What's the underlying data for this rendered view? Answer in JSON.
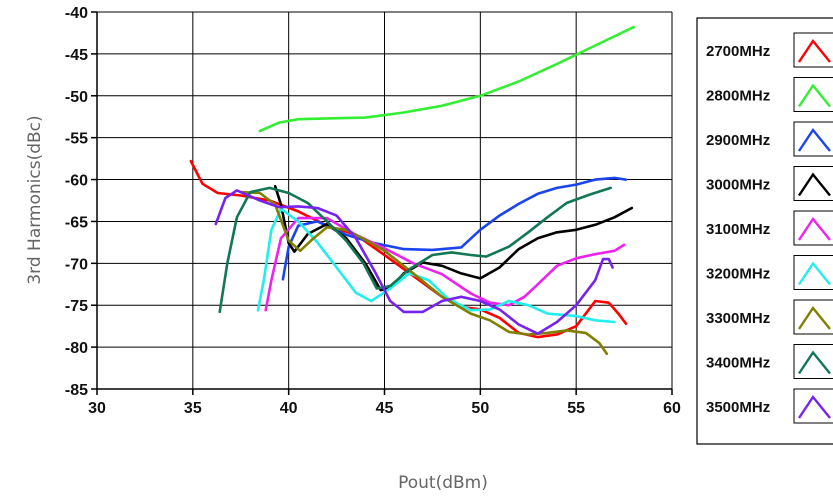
{
  "chart_data": {
    "type": "line",
    "title": "",
    "xlabel": "Pout(dBm)",
    "ylabel": "3rd Harmonics(dBc)",
    "xlim": [
      30,
      60
    ],
    "ylim": [
      -85,
      -40
    ],
    "xticks": [
      30,
      35,
      40,
      45,
      50,
      55,
      60
    ],
    "yticks": [
      -40,
      -45,
      -50,
      -55,
      -60,
      -65,
      -70,
      -75,
      -80,
      -85
    ],
    "grid": true,
    "legend_position": "right",
    "series": [
      {
        "name": "2700MHz",
        "color": "#ff0000",
        "points": [
          [
            34.9,
            -57.8
          ],
          [
            35.5,
            -60.5
          ],
          [
            36.3,
            -61.6
          ],
          [
            37.5,
            -61.9
          ],
          [
            39,
            -62.5
          ],
          [
            40.5,
            -63.8
          ],
          [
            42,
            -65.5
          ],
          [
            43.5,
            -66.6
          ],
          [
            45,
            -69
          ],
          [
            46.5,
            -71.5
          ],
          [
            48,
            -74
          ],
          [
            49,
            -75.2
          ],
          [
            50,
            -75.5
          ],
          [
            51,
            -76.5
          ],
          [
            52,
            -78.3
          ],
          [
            53,
            -78.8
          ],
          [
            54,
            -78.5
          ],
          [
            55,
            -77.5
          ],
          [
            56,
            -74.5
          ],
          [
            56.7,
            -74.7
          ],
          [
            57.2,
            -76
          ],
          [
            57.6,
            -77.2
          ]
        ]
      },
      {
        "name": "2800MHz",
        "color": "#33ee33",
        "points": [
          [
            38.5,
            -54.2
          ],
          [
            39.5,
            -53.2
          ],
          [
            40.5,
            -52.8
          ],
          [
            42,
            -52.7
          ],
          [
            44,
            -52.6
          ],
          [
            46,
            -52
          ],
          [
            48,
            -51.2
          ],
          [
            50,
            -50
          ],
          [
            52,
            -48.3
          ],
          [
            54,
            -46.2
          ],
          [
            56,
            -44
          ],
          [
            58,
            -41.8
          ]
        ]
      },
      {
        "name": "2900MHz",
        "color": "#1a44ee",
        "points": [
          [
            39.7,
            -71.9
          ],
          [
            40,
            -68
          ],
          [
            40.5,
            -65.5
          ],
          [
            41.5,
            -65
          ],
          [
            43,
            -66.6
          ],
          [
            44.5,
            -67.6
          ],
          [
            46,
            -68.3
          ],
          [
            47.5,
            -68.4
          ],
          [
            49,
            -68.1
          ],
          [
            50,
            -66
          ],
          [
            51,
            -64.3
          ],
          [
            52,
            -62.9
          ],
          [
            53,
            -61.7
          ],
          [
            54,
            -61
          ],
          [
            55,
            -60.6
          ],
          [
            56,
            -60
          ],
          [
            57,
            -59.8
          ],
          [
            57.6,
            -60
          ]
        ]
      },
      {
        "name": "3000MHz",
        "color": "#000000",
        "points": [
          [
            39.3,
            -60.8
          ],
          [
            39.6,
            -63
          ],
          [
            40,
            -67.6
          ],
          [
            40.3,
            -68.6
          ],
          [
            41,
            -66.5
          ],
          [
            42,
            -65.3
          ],
          [
            43,
            -67
          ],
          [
            44,
            -70
          ],
          [
            44.8,
            -73.2
          ],
          [
            45.3,
            -73
          ],
          [
            46,
            -71.2
          ],
          [
            47,
            -69.9
          ],
          [
            48,
            -70.3
          ],
          [
            49,
            -71.2
          ],
          [
            50,
            -71.8
          ],
          [
            51,
            -70.5
          ],
          [
            52,
            -68.3
          ],
          [
            53,
            -67
          ],
          [
            54,
            -66.3
          ],
          [
            55,
            -66
          ],
          [
            56,
            -65.4
          ],
          [
            57,
            -64.5
          ],
          [
            57.9,
            -63.4
          ]
        ]
      },
      {
        "name": "3100MHz",
        "color": "#ee22ee",
        "points": [
          [
            38.8,
            -75.6
          ],
          [
            39.1,
            -72
          ],
          [
            39.6,
            -67
          ],
          [
            40.5,
            -64.6
          ],
          [
            42,
            -64.6
          ],
          [
            43.5,
            -66.6
          ],
          [
            45,
            -68.2
          ],
          [
            46.5,
            -70
          ],
          [
            48,
            -71.3
          ],
          [
            49.5,
            -73.6
          ],
          [
            50.5,
            -74.7
          ],
          [
            51.5,
            -75
          ],
          [
            52.3,
            -74
          ],
          [
            53,
            -72.5
          ],
          [
            54,
            -70.3
          ],
          [
            55,
            -69.4
          ],
          [
            56,
            -68.9
          ],
          [
            57,
            -68.5
          ],
          [
            57.5,
            -67.8
          ]
        ]
      },
      {
        "name": "3200MHz",
        "color": "#22eeee",
        "points": [
          [
            38.4,
            -75.6
          ],
          [
            38.7,
            -72
          ],
          [
            39.1,
            -66
          ],
          [
            39.6,
            -63.5
          ],
          [
            40.5,
            -65
          ],
          [
            41.5,
            -67.5
          ],
          [
            42.5,
            -70.5
          ],
          [
            43.5,
            -73.5
          ],
          [
            44.3,
            -74.5
          ],
          [
            45.3,
            -73
          ],
          [
            46.3,
            -71.2
          ],
          [
            47.3,
            -72
          ],
          [
            48.3,
            -74.2
          ],
          [
            49.5,
            -75.6
          ],
          [
            50.5,
            -75.5
          ],
          [
            51.5,
            -74.5
          ],
          [
            52.5,
            -75
          ],
          [
            53.5,
            -76
          ],
          [
            55,
            -76.3
          ],
          [
            56,
            -76.8
          ],
          [
            57,
            -77
          ]
        ]
      },
      {
        "name": "3300MHz",
        "color": "#808000",
        "points": [
          [
            37.5,
            -61.5
          ],
          [
            38.5,
            -61.6
          ],
          [
            39.3,
            -63
          ],
          [
            40,
            -67.3
          ],
          [
            40.6,
            -68.5
          ],
          [
            41.3,
            -67
          ],
          [
            42,
            -65.7
          ],
          [
            43,
            -66
          ],
          [
            44,
            -67.2
          ],
          [
            45,
            -68.5
          ],
          [
            46.5,
            -71.2
          ],
          [
            48,
            -74
          ],
          [
            49.5,
            -76
          ],
          [
            50.5,
            -76.8
          ],
          [
            51.5,
            -78.2
          ],
          [
            52.5,
            -78.5
          ],
          [
            53.5,
            -78.3
          ],
          [
            54.5,
            -78
          ],
          [
            55.5,
            -78.3
          ],
          [
            56.2,
            -79.5
          ],
          [
            56.6,
            -80.8
          ]
        ]
      },
      {
        "name": "3400MHz",
        "color": "#117755",
        "points": [
          [
            36.4,
            -75.8
          ],
          [
            36.8,
            -70
          ],
          [
            37.3,
            -64.5
          ],
          [
            38,
            -61.5
          ],
          [
            39,
            -61
          ],
          [
            40,
            -61.6
          ],
          [
            41,
            -62.8
          ],
          [
            42,
            -65
          ],
          [
            43,
            -67.3
          ],
          [
            43.9,
            -70
          ],
          [
            44.6,
            -73
          ],
          [
            45.3,
            -72.7
          ],
          [
            46.3,
            -70.7
          ],
          [
            47.5,
            -69
          ],
          [
            48.5,
            -68.7
          ],
          [
            49.5,
            -69
          ],
          [
            50.3,
            -69.2
          ],
          [
            51.5,
            -68
          ],
          [
            52.5,
            -66.3
          ],
          [
            53.5,
            -64.5
          ],
          [
            54.5,
            -62.8
          ],
          [
            55.7,
            -61.8
          ],
          [
            56.8,
            -61
          ]
        ]
      },
      {
        "name": "3500MHz",
        "color": "#7722ee",
        "points": [
          [
            36.2,
            -65.3
          ],
          [
            36.7,
            -62.2
          ],
          [
            37.3,
            -61.3
          ],
          [
            38.5,
            -62.5
          ],
          [
            39.5,
            -63.3
          ],
          [
            40.5,
            -63.2
          ],
          [
            41.5,
            -63.4
          ],
          [
            42.5,
            -64.3
          ],
          [
            43.5,
            -67
          ],
          [
            44.5,
            -71
          ],
          [
            45.3,
            -74.5
          ],
          [
            46,
            -75.8
          ],
          [
            47,
            -75.8
          ],
          [
            48,
            -74.5
          ],
          [
            49,
            -74
          ],
          [
            50,
            -74.5
          ],
          [
            51,
            -75.5
          ],
          [
            52,
            -77.3
          ],
          [
            53,
            -78.4
          ],
          [
            54,
            -77
          ],
          [
            55,
            -75
          ],
          [
            56,
            -72
          ],
          [
            56.4,
            -69.5
          ],
          [
            56.7,
            -69.5
          ],
          [
            56.9,
            -70.5
          ]
        ]
      }
    ]
  }
}
